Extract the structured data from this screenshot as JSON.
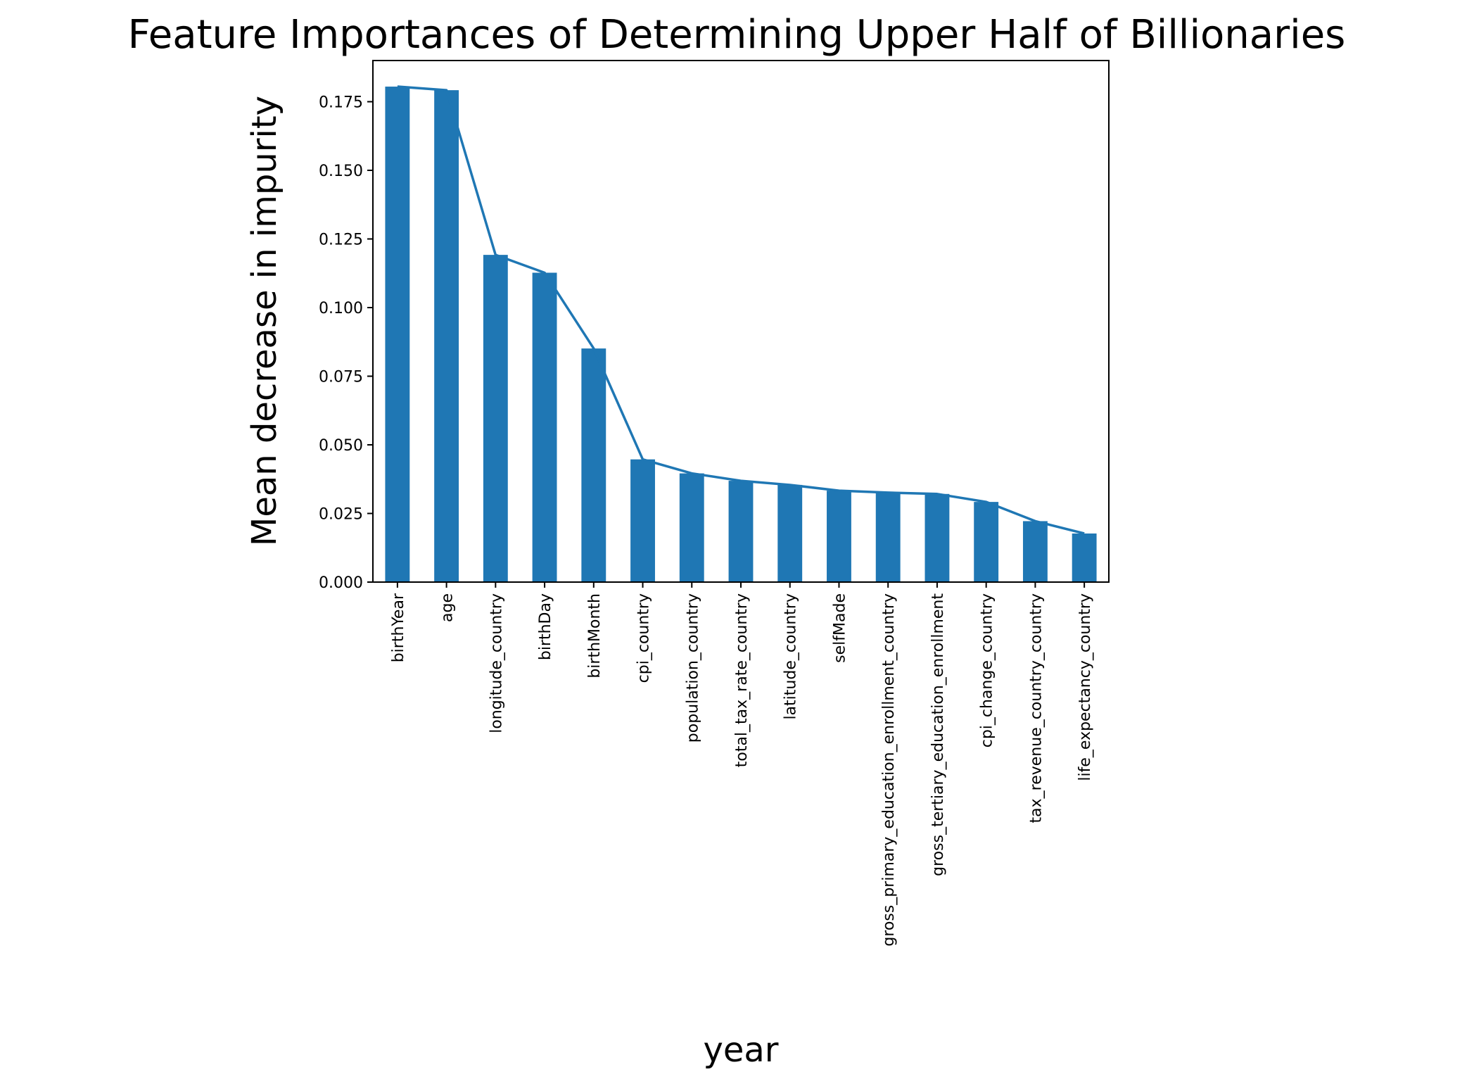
{
  "chart_data": {
    "type": "bar",
    "title": "Feature Importances of Determining Upper Half of Billionaries",
    "xlabel": "year",
    "ylabel": "Mean decrease in impurity",
    "categories": [
      "birthYear",
      "age",
      "longitude_country",
      "birthDay",
      "birthMonth",
      "cpi_country",
      "population_country",
      "total_tax_rate_country",
      "latitude_country",
      "selfMade",
      "gross_primary_education_enrollment_country",
      "gross_tertiary_education_enrollment",
      "cpi_change_country",
      "tax_revenue_country_country",
      "life_expectancy_country"
    ],
    "values": [
      0.1805,
      0.1792,
      0.1192,
      0.1127,
      0.0851,
      0.0447,
      0.0396,
      0.0369,
      0.0354,
      0.0333,
      0.0326,
      0.0321,
      0.0292,
      0.0222,
      0.0177
    ],
    "line_overlay": true,
    "ylim": [
      0,
      0.19
    ],
    "yticks": [
      0.0,
      0.025,
      0.05,
      0.075,
      0.1,
      0.125,
      0.15,
      0.175
    ],
    "ytick_labels": [
      "0.000",
      "0.025",
      "0.050",
      "0.075",
      "0.100",
      "0.125",
      "0.150",
      "0.175"
    ],
    "grid": false,
    "colors": {
      "bar": "#1f77b4",
      "line": "#1f77b4",
      "axis": "#000000"
    }
  }
}
